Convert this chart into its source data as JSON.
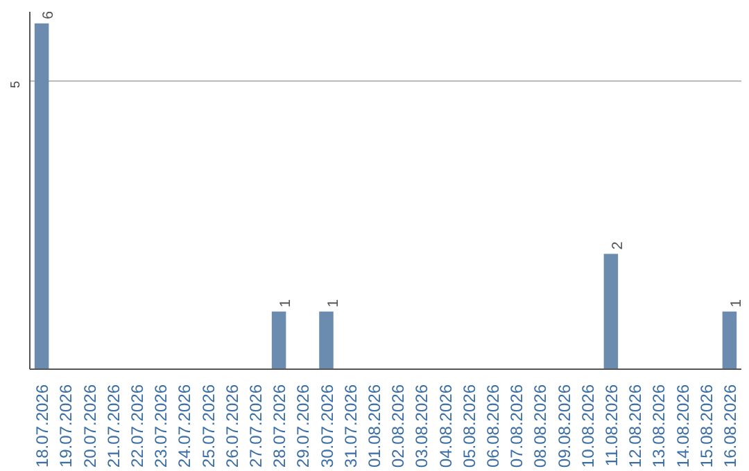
{
  "chart_data": {
    "type": "bar",
    "categories": [
      "18.07.2026",
      "19.07.2026",
      "20.07.2026",
      "21.07.2026",
      "22.07.2026",
      "23.07.2026",
      "24.07.2026",
      "25.07.2026",
      "26.07.2026",
      "27.07.2026",
      "28.07.2026",
      "29.07.2026",
      "30.07.2026",
      "31.07.2026",
      "01.08.2026",
      "02.08.2026",
      "03.08.2026",
      "04.08.2026",
      "05.08.2026",
      "06.08.2026",
      "07.08.2026",
      "08.08.2026",
      "09.08.2026",
      "10.08.2026",
      "11.08.2026",
      "12.08.2026",
      "13.08.2026",
      "14.08.2026",
      "15.08.2026",
      "16.08.2026"
    ],
    "values": [
      6,
      0,
      0,
      0,
      0,
      0,
      0,
      0,
      0,
      0,
      1,
      0,
      1,
      0,
      0,
      0,
      0,
      0,
      0,
      0,
      0,
      0,
      0,
      0,
      2,
      0,
      0,
      0,
      0,
      1
    ],
    "color": "#6b8cae",
    "value_labels": [
      "6",
      null,
      null,
      null,
      null,
      null,
      null,
      null,
      null,
      null,
      "1",
      null,
      "1",
      null,
      null,
      null,
      null,
      null,
      null,
      null,
      null,
      null,
      null,
      null,
      "2",
      null,
      null,
      null,
      null,
      "1"
    ],
    "ylim": [
      0,
      6.2
    ],
    "yticks": [
      5
    ],
    "grid": "y"
  }
}
